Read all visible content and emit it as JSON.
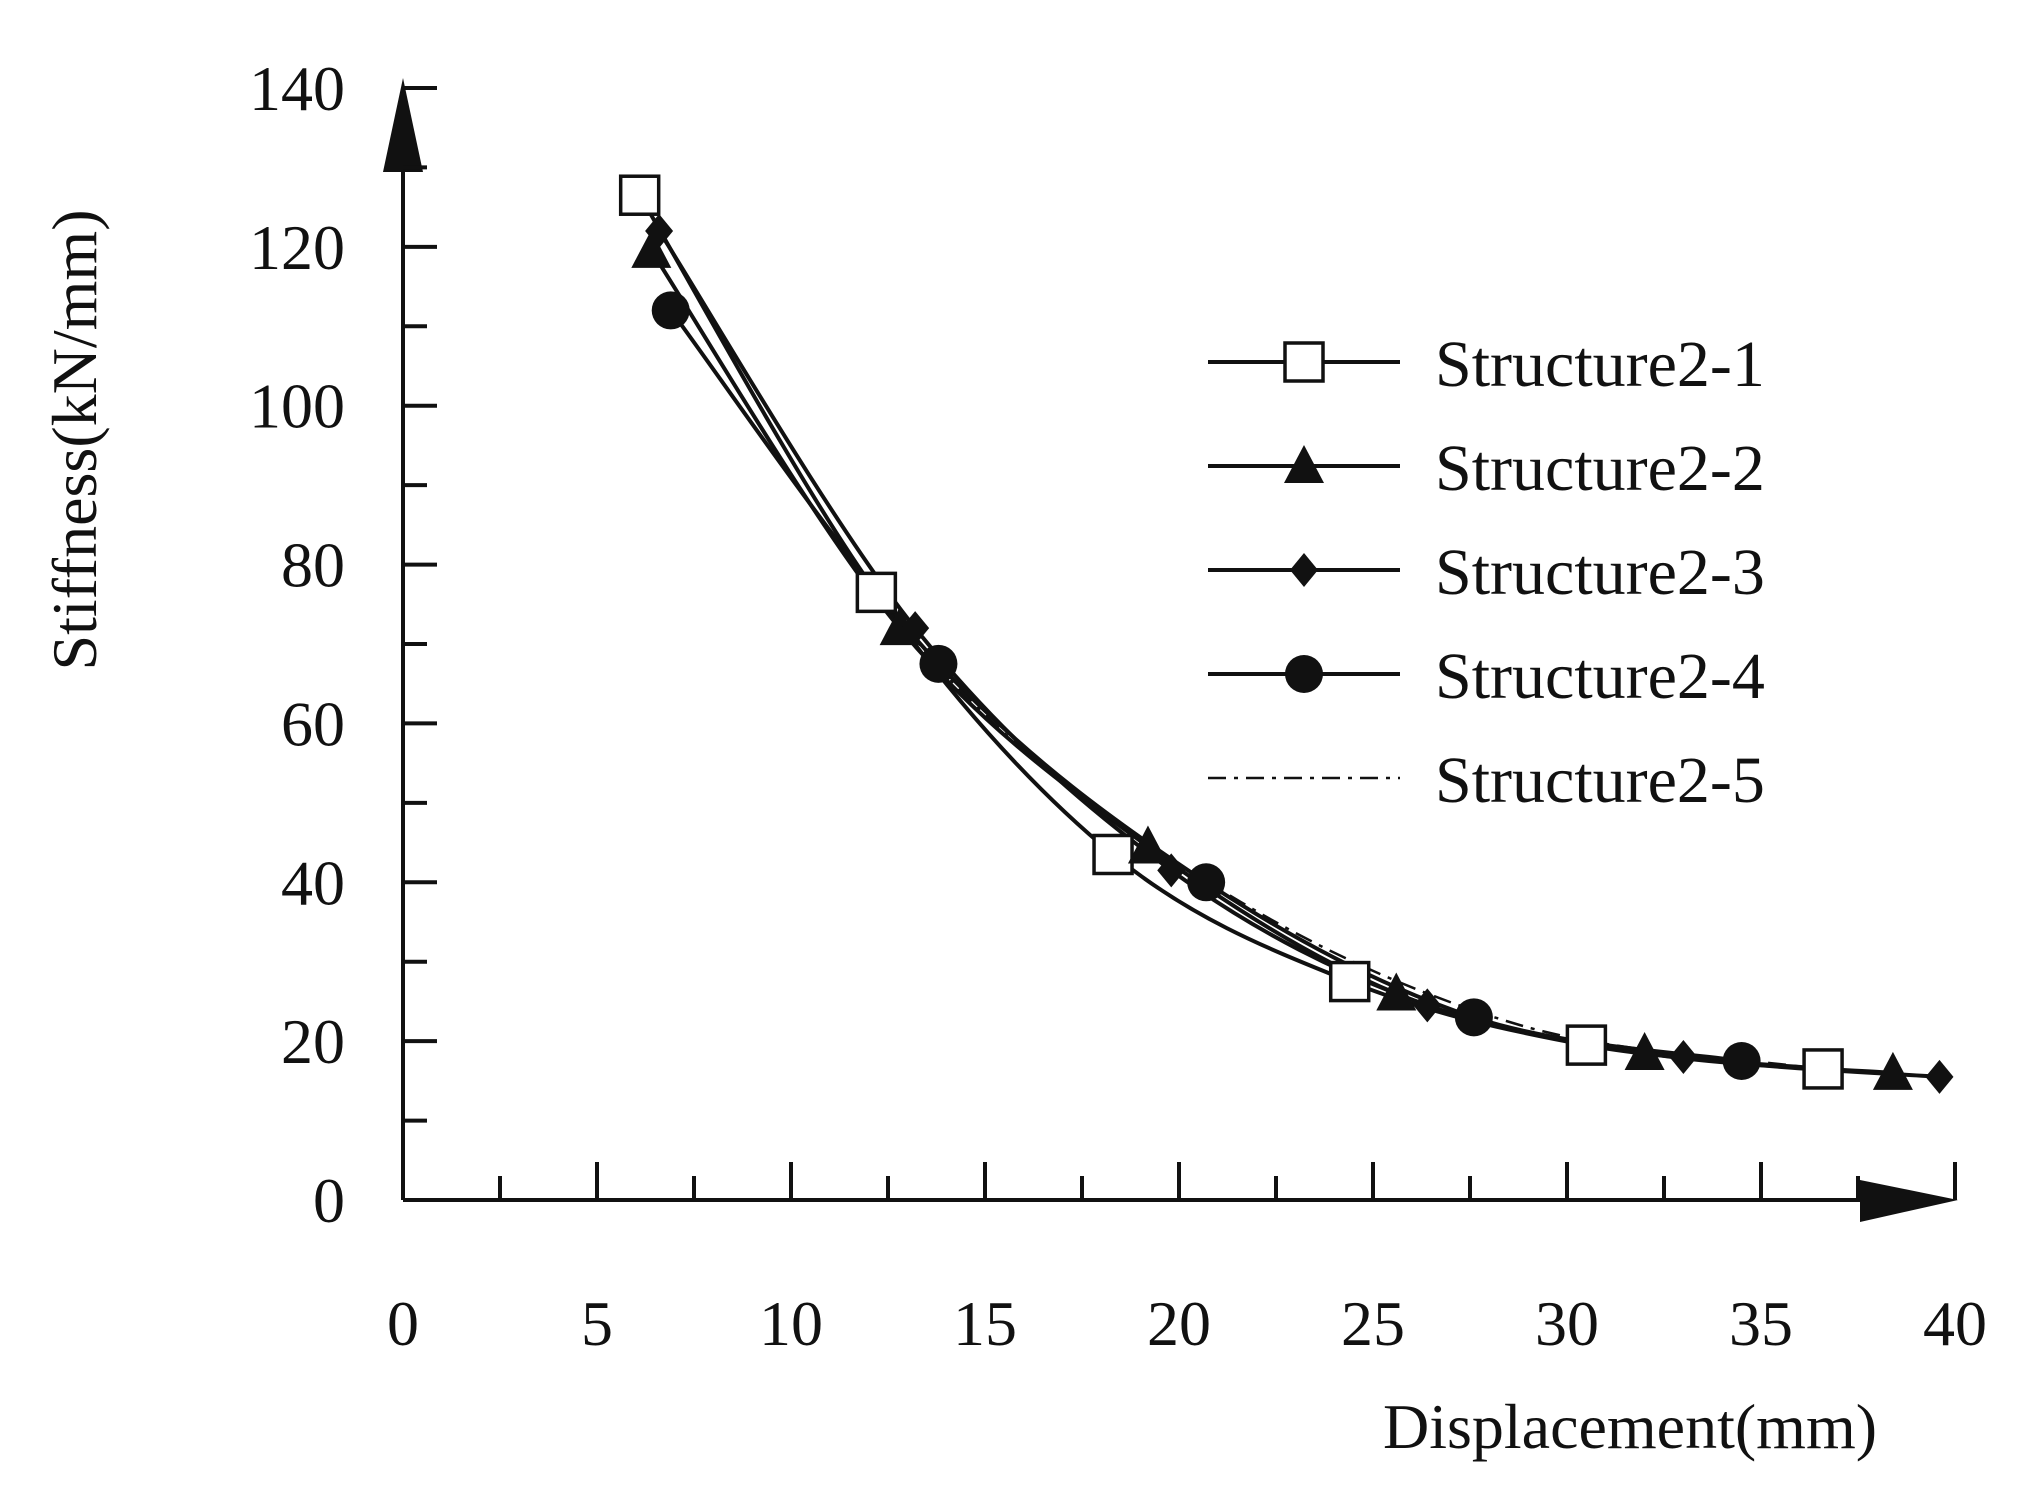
{
  "chart_data": {
    "type": "line",
    "title": "",
    "xlabel": "Displacement(mm)",
    "ylabel": "Stiffness(kN/mm)",
    "xlim": [
      0,
      40
    ],
    "ylim": [
      0,
      140
    ],
    "x_ticks": [
      0,
      5,
      10,
      15,
      20,
      25,
      30,
      35,
      40
    ],
    "y_ticks": [
      0,
      20,
      40,
      60,
      80,
      100,
      120,
      140
    ],
    "grid": false,
    "legend_position": "right",
    "series": [
      {
        "name": "Structure2-1",
        "marker": "open-square",
        "line_style": "solid",
        "x": [
          6.1,
          12.2,
          18.3,
          24.4,
          30.5,
          36.6
        ],
        "y": [
          126.5,
          76.5,
          43.5,
          27.5,
          19.5,
          16.5
        ]
      },
      {
        "name": "Structure2-2",
        "marker": "filled-triangle",
        "line_style": "solid",
        "x": [
          6.4,
          12.8,
          19.2,
          25.6,
          32.0,
          38.4
        ],
        "y": [
          119.5,
          72.0,
          44.5,
          26.0,
          18.5,
          16.0
        ]
      },
      {
        "name": "Structure2-3",
        "marker": "filled-diamond",
        "line_style": "solid",
        "x": [
          6.6,
          13.2,
          19.8,
          26.4,
          33.0,
          39.6
        ],
        "y": [
          122.0,
          72.0,
          41.5,
          24.5,
          18.0,
          15.5
        ]
      },
      {
        "name": "Structure2-4",
        "marker": "filled-circle",
        "line_style": "solid",
        "x": [
          6.9,
          13.8,
          20.7,
          27.6,
          34.5
        ],
        "y": [
          112.0,
          67.5,
          40.0,
          23.0,
          17.5
        ]
      },
      {
        "name": "Structure2-5",
        "marker": "none",
        "line_style": "dash-dot",
        "x": [
          7.2,
          14.4,
          21.6,
          28.8,
          36.0
        ],
        "y": [
          110.0,
          64.0,
          37.5,
          22.0,
          16.8
        ]
      }
    ]
  },
  "colors": {
    "ink": "#111111",
    "background": "#ffffff"
  }
}
